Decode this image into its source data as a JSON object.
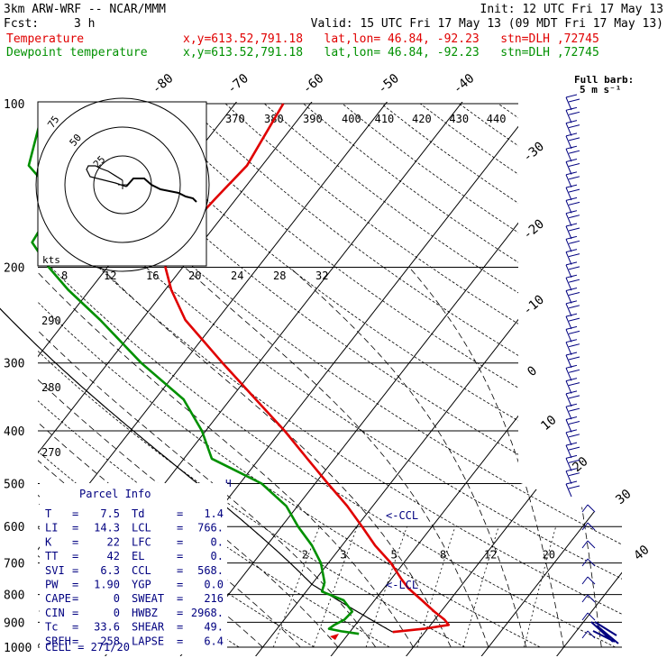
{
  "header": {
    "model": "3km ARW-WRF -- NCAR/MMM",
    "init": "Init: 12 UTC Fri 17 May 13",
    "fcst_label": "Fcst:",
    "fcst_value": "3 h",
    "valid": "Valid: 15 UTC Fri 17 May 13 (09 MDT Fri 17 May 13)",
    "temp_label": "Temperature",
    "dew_label": "Dewpoint temperature",
    "location": "x,y=613.52,791.18   lat,lon= 46.84, -92.23   stn=DLH ,72745"
  },
  "colors": {
    "temperature": "#e00000",
    "dewpoint": "#009000",
    "parcel": "#000000",
    "text_panel": "#000080",
    "grid": "#000000"
  },
  "wind_legend": {
    "label": "Full barb:",
    "value": "5 m s⁻¹"
  },
  "hodograph": {
    "speed_unit": "kts",
    "ring_labels": [
      "75",
      "50",
      "25"
    ],
    "axis_labels": [
      "8",
      "12",
      "16",
      "20",
      "24",
      "28",
      "32"
    ]
  },
  "parcel_info": {
    "title": "Parcel Info",
    "rows": [
      [
        "T",
        "7.5",
        "Td",
        "1.4"
      ],
      [
        "LI",
        "14.3",
        "LCL",
        "766."
      ],
      [
        "K",
        "22",
        "LFC",
        "0."
      ],
      [
        "TT",
        "42",
        "EL",
        "0."
      ],
      [
        "SVI",
        "6.3",
        "CCL",
        "568."
      ],
      [
        "PW",
        "1.90",
        "YGP",
        "0.0"
      ],
      [
        "CAPE",
        "0",
        "SWEAT",
        "216"
      ],
      [
        "CIN",
        "0",
        "HWBZ",
        "2968."
      ],
      [
        "Tc",
        "33.6",
        "SHEAR",
        "49."
      ],
      [
        "SREH",
        "258",
        "LAPSE",
        "6.4"
      ]
    ],
    "cell": "CELL = 271/20"
  },
  "annotations": {
    "ccl": "<-CCL",
    "lcl": "<-LCL",
    "h_marker": "H"
  },
  "chart_data": {
    "type": "line",
    "subtype": "skew-T log-P",
    "y_axis": {
      "label": "",
      "scale": "log",
      "pressure_ticks": [
        100,
        200,
        300,
        400,
        500,
        600,
        700,
        800,
        900,
        1000
      ],
      "ylim": [
        1000,
        100
      ]
    },
    "isotherm_labels_top": [
      -80,
      -70,
      -60,
      -50,
      -40
    ],
    "isotherm_labels_right": [
      -30,
      -20,
      -10,
      0,
      10,
      20,
      30,
      40
    ],
    "theta_e_labels": [
      370,
      380,
      390,
      400,
      410,
      420,
      430,
      440
    ],
    "theta_labels": [
      290,
      280,
      270
    ],
    "mixing_ratio_labels": [
      2,
      3,
      5,
      8,
      12,
      20
    ],
    "series": [
      {
        "name": "Temperature",
        "pressure": [
          938,
          925,
          910,
          890,
          860,
          820,
          780,
          750,
          700,
          650,
          600,
          550,
          500,
          450,
          400,
          350,
          300,
          250,
          220,
          200,
          180,
          150,
          130,
          100
        ],
        "values": [
          5.7,
          9.5,
          12.4,
          11.3,
          9.1,
          6.3,
          3.3,
          1.4,
          -1.7,
          -5.6,
          -9.3,
          -13.4,
          -18.3,
          -23.6,
          -29.5,
          -36.6,
          -44.8,
          -54.2,
          -59.2,
          -62.3,
          -63.6,
          -62.8,
          -62.0,
          -63.6
        ]
      },
      {
        "name": "Dewpoint temperature",
        "pressure": [
          945,
          935,
          925,
          910,
          890,
          860,
          820,
          790,
          760,
          700,
          650,
          600,
          550,
          500,
          450,
          400,
          350,
          300,
          250,
          220,
          200,
          180,
          150,
          130,
          100
        ],
        "values": [
          1.4,
          -1.2,
          -3.1,
          -2.8,
          -2.0,
          -1.8,
          -4.1,
          -7.9,
          -8.5,
          -11.0,
          -14.0,
          -17.8,
          -21.5,
          -27.1,
          -36.3,
          -40.5,
          -46.2,
          -55.6,
          -65.5,
          -72.9,
          -77.8,
          -82.6,
          -83.6,
          -91.0,
          -95.3
        ]
      }
    ]
  }
}
